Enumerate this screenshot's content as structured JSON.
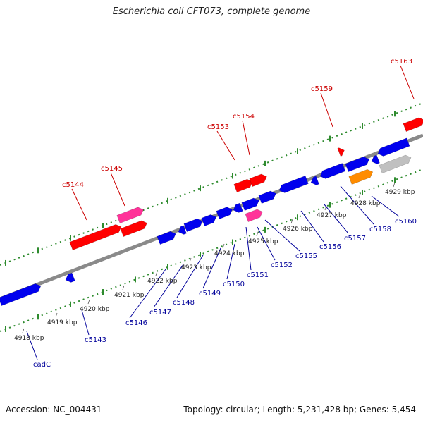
{
  "title": "Escherichia coli CFT073, complete genome",
  "footer": {
    "accession": "Accession: NC_004431",
    "summary": "Topology: circular; Length: 5,231,428 bp; Genes: 5,454"
  },
  "colors": {
    "backbone": "#8a8a8a",
    "dotted_track": "#2e8b2e",
    "forward_label": "#cc0000",
    "reverse_label": "#00009a",
    "gene_red": "#ff0000",
    "gene_blue": "#0000ee",
    "gene_pink": "#ff3399",
    "gene_orange": "#ff8c00",
    "gene_gray": "#c0c0c0"
  },
  "scale_labels": [
    "4918 kbp",
    "4919 kbp",
    "4920 kbp",
    "4921 kbp",
    "4922 kbp",
    "4923 kbp",
    "4924 kbp",
    "4925 kbp",
    "4926 kbp",
    "4927 kbp",
    "4928 kbp",
    "4929 kbp"
  ],
  "forward_gene_labels": [
    "c5144",
    "c5145",
    "c5153",
    "c5154",
    "c5159",
    "c5163"
  ],
  "reverse_gene_labels": [
    "cadC",
    "c5143",
    "c5146",
    "c5147",
    "c5148",
    "c5149",
    "c5150",
    "c5151",
    "c5152",
    "c5155",
    "c5156",
    "c5157",
    "c5158",
    "c5160"
  ]
}
